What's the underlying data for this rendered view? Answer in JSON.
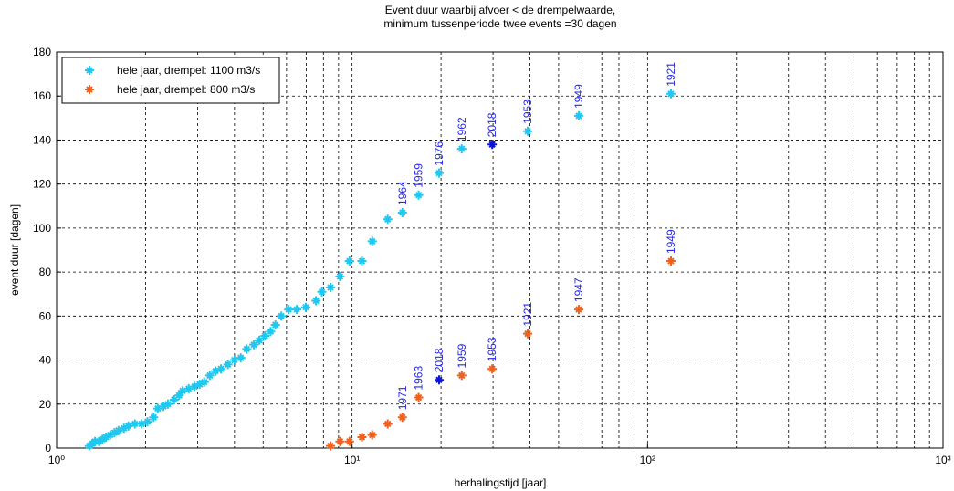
{
  "chart_data": {
    "type": "scatter",
    "title": [
      "Event duur waarbij afvoer < de drempelwaarde,",
      "minimum tussenperiode twee events =30 dagen"
    ],
    "x_label": "herhalingstijd [jaar]",
    "y_label": "event duur [dagen]",
    "x_log": true,
    "grid": true,
    "x_minor_grid": true,
    "legend": "upper left",
    "xlim": [
      1,
      1000
    ],
    "xticks": [
      {
        "value": 1,
        "label": "10⁰"
      },
      {
        "value": 10,
        "label": "10¹"
      },
      {
        "value": 100,
        "label": "10²"
      },
      {
        "value": 1000,
        "label": "10³"
      }
    ],
    "ylim": [
      0,
      180
    ],
    "yticks": [
      0,
      20,
      40,
      60,
      80,
      100,
      120,
      140,
      160,
      180
    ],
    "series": [
      {
        "name": "hele jaar, drempel: 1100 m3/s",
        "color": "#1ec8f0",
        "x": [
          120,
          58.5,
          39.3,
          29.8,
          23.5,
          19.7,
          16.8,
          14.8,
          13.2,
          11.7,
          10.8,
          9.8,
          9.1,
          8.45,
          7.9,
          7.55,
          6.97,
          6.5,
          6.1,
          5.76,
          5.5,
          5.3,
          5.07,
          4.85,
          4.65,
          4.4,
          4.2,
          4.0,
          3.8,
          3.6,
          3.45,
          3.3,
          3.16,
          3.05,
          2.93,
          2.8,
          2.67,
          2.6,
          2.5,
          2.38,
          2.3,
          2.2,
          2.13,
          2.03,
          1.94,
          1.84,
          1.75,
          1.69,
          1.62,
          1.57,
          1.52,
          1.47,
          1.43,
          1.39,
          1.35,
          1.32,
          1.29
        ],
        "values": [
          161,
          151,
          144,
          138,
          136,
          125,
          115,
          107,
          104,
          94,
          85,
          85,
          78,
          73,
          71,
          67,
          64,
          63,
          63,
          60,
          56,
          53,
          51,
          49,
          47,
          45,
          41,
          40,
          38,
          36,
          35,
          33,
          30,
          29,
          28,
          27,
          26,
          24,
          22,
          20,
          19,
          18,
          14,
          12,
          11,
          11,
          10,
          9,
          8,
          7,
          6,
          5,
          4,
          3,
          3,
          2,
          1
        ],
        "annotations": [
          {
            "text": "1921",
            "x": 120,
            "y": 161
          },
          {
            "text": "1949",
            "x": 58.5,
            "y": 151
          },
          {
            "text": "1953",
            "x": 39.3,
            "y": 144
          },
          {
            "text": "2018",
            "x": 29.8,
            "y": 138,
            "marker_color": "#0a14d8"
          },
          {
            "text": "1962",
            "x": 23.5,
            "y": 136
          },
          {
            "text": "1976",
            "x": 19.7,
            "y": 125
          },
          {
            "text": "1959",
            "x": 16.8,
            "y": 115
          },
          {
            "text": "1964",
            "x": 14.8,
            "y": 107
          }
        ]
      },
      {
        "name": "hele jaar, drempel: 800 m3/s",
        "color": "#f0601e",
        "x": [
          120,
          58.5,
          39.3,
          29.8,
          23.5,
          19.7,
          16.8,
          14.8,
          13.2,
          11.7,
          10.8,
          9.8,
          9.1,
          8.45
        ],
        "values": [
          85,
          63,
          52,
          36,
          33,
          31,
          23,
          14,
          11,
          6,
          5,
          3,
          3,
          1
        ],
        "annotations": [
          {
            "text": "1949",
            "x": 120,
            "y": 85
          },
          {
            "text": "1947",
            "x": 58.5,
            "y": 63
          },
          {
            "text": "1921",
            "x": 39.3,
            "y": 52
          },
          {
            "text": "1953",
            "x": 29.8,
            "y": 36
          },
          {
            "text": "1959",
            "x": 23.5,
            "y": 33
          },
          {
            "text": "2018",
            "x": 19.7,
            "y": 31,
            "marker_color": "#0a14d8"
          },
          {
            "text": "1963",
            "x": 16.8,
            "y": 23
          },
          {
            "text": "1971",
            "x": 14.8,
            "y": 14
          }
        ]
      }
    ]
  }
}
